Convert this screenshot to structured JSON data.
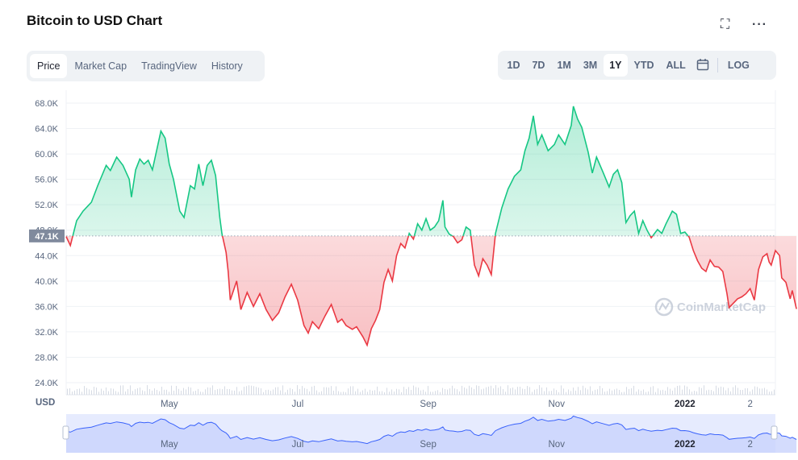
{
  "header": {
    "title": "Bitcoin to USD Chart",
    "fullscreen_icon": "expand-icon",
    "more_icon": "more-horizontal-icon"
  },
  "tabs": [
    {
      "label": "Price",
      "active": true
    },
    {
      "label": "Market Cap",
      "active": false
    },
    {
      "label": "TradingView",
      "active": false
    },
    {
      "label": "History",
      "active": false
    }
  ],
  "ranges": [
    {
      "label": "1D",
      "active": false
    },
    {
      "label": "7D",
      "active": false
    },
    {
      "label": "1M",
      "active": false
    },
    {
      "label": "3M",
      "active": false
    },
    {
      "label": "1Y",
      "active": true
    },
    {
      "label": "YTD",
      "active": false
    },
    {
      "label": "ALL",
      "active": false
    }
  ],
  "calendar_icon": "calendar-icon",
  "log_label": "LOG",
  "colors": {
    "up": "#16c784",
    "down": "#ea3943",
    "navigator": "#3861fb",
    "text": "#58667e"
  },
  "chart_data": {
    "type": "area",
    "title": "Bitcoin to USD Chart",
    "currency_label": "USD",
    "baseline": 47100,
    "baseline_label": "47.1K",
    "ylim": [
      24000,
      68000
    ],
    "yticks": [
      24000,
      28000,
      32000,
      36000,
      40000,
      44000,
      48000,
      52000,
      56000,
      60000,
      64000,
      68000
    ],
    "ytick_labels": [
      "24.0K",
      "28.0K",
      "32.0K",
      "36.0K",
      "40.0K",
      "44.0K",
      "48.0K",
      "52.0K",
      "56.0K",
      "60.0K",
      "64.0K",
      "68.0K"
    ],
    "x_range": [
      "2021-03-13",
      "2022-02-13"
    ],
    "xticks": [
      {
        "date": "2021-05-01",
        "label": "May",
        "bold": false
      },
      {
        "date": "2021-07-01",
        "label": "Jul",
        "bold": false
      },
      {
        "date": "2021-09-01",
        "label": "Sep",
        "bold": false
      },
      {
        "date": "2021-11-01",
        "label": "Nov",
        "bold": false
      },
      {
        "date": "2022-01-01",
        "label": "2022",
        "bold": true
      },
      {
        "date": "2022-02-01",
        "label": "2",
        "bold": false
      }
    ],
    "watermark": "CoinMarketCap",
    "grid": true,
    "series": [
      {
        "values": [
          [
            "2021-03-13",
            47000
          ],
          [
            "2021-03-15",
            45600
          ],
          [
            "2021-03-18",
            49500
          ],
          [
            "2021-03-21",
            51000
          ],
          [
            "2021-03-25",
            52400
          ],
          [
            "2021-03-28",
            55000
          ],
          [
            "2021-04-01",
            58200
          ],
          [
            "2021-04-03",
            57400
          ],
          [
            "2021-04-06",
            59500
          ],
          [
            "2021-04-09",
            58200
          ],
          [
            "2021-04-12",
            56000
          ],
          [
            "2021-04-13",
            53200
          ],
          [
            "2021-04-15",
            57500
          ],
          [
            "2021-04-17",
            59200
          ],
          [
            "2021-04-19",
            58400
          ],
          [
            "2021-04-21",
            59000
          ],
          [
            "2021-04-23",
            57500
          ],
          [
            "2021-04-25",
            60600
          ],
          [
            "2021-04-27",
            63600
          ],
          [
            "2021-04-29",
            62500
          ],
          [
            "2021-05-01",
            58400
          ],
          [
            "2021-05-03",
            56000
          ],
          [
            "2021-05-06",
            51000
          ],
          [
            "2021-05-08",
            50000
          ],
          [
            "2021-05-11",
            55000
          ],
          [
            "2021-05-13",
            54500
          ],
          [
            "2021-05-15",
            58400
          ],
          [
            "2021-05-17",
            55000
          ],
          [
            "2021-05-19",
            58200
          ],
          [
            "2021-05-21",
            59000
          ],
          [
            "2021-05-23",
            56600
          ],
          [
            "2021-05-25",
            50000
          ],
          [
            "2021-05-26",
            47500
          ],
          [
            "2021-05-28",
            44500
          ],
          [
            "2021-05-29",
            41500
          ],
          [
            "2021-05-30",
            37000
          ],
          [
            "2021-06-02",
            40000
          ],
          [
            "2021-06-04",
            35500
          ],
          [
            "2021-06-07",
            38200
          ],
          [
            "2021-06-10",
            36000
          ],
          [
            "2021-06-13",
            38000
          ],
          [
            "2021-06-16",
            35500
          ],
          [
            "2021-06-19",
            33800
          ],
          [
            "2021-06-22",
            35000
          ],
          [
            "2021-06-25",
            37500
          ],
          [
            "2021-06-28",
            39500
          ],
          [
            "2021-07-01",
            37000
          ],
          [
            "2021-07-04",
            33000
          ],
          [
            "2021-07-06",
            31800
          ],
          [
            "2021-07-08",
            33600
          ],
          [
            "2021-07-11",
            32500
          ],
          [
            "2021-07-14",
            34500
          ],
          [
            "2021-07-17",
            36300
          ],
          [
            "2021-07-20",
            33500
          ],
          [
            "2021-07-22",
            34000
          ],
          [
            "2021-07-24",
            33000
          ],
          [
            "2021-07-27",
            32400
          ],
          [
            "2021-07-29",
            32800
          ],
          [
            "2021-08-01",
            31200
          ],
          [
            "2021-08-03",
            29900
          ],
          [
            "2021-08-05",
            32500
          ],
          [
            "2021-08-07",
            33800
          ],
          [
            "2021-08-09",
            35500
          ],
          [
            "2021-08-11",
            39800
          ],
          [
            "2021-08-13",
            41800
          ],
          [
            "2021-08-15",
            40000
          ],
          [
            "2021-08-17",
            44000
          ],
          [
            "2021-08-19",
            45900
          ],
          [
            "2021-08-21",
            45200
          ],
          [
            "2021-08-23",
            47500
          ],
          [
            "2021-08-25",
            46600
          ],
          [
            "2021-08-27",
            49000
          ],
          [
            "2021-08-29",
            48000
          ],
          [
            "2021-08-31",
            49800
          ],
          [
            "2021-09-02",
            48000
          ],
          [
            "2021-09-04",
            48500
          ],
          [
            "2021-09-06",
            49500
          ],
          [
            "2021-09-08",
            52700
          ],
          [
            "2021-09-09",
            48500
          ],
          [
            "2021-09-11",
            47400
          ],
          [
            "2021-09-13",
            47000
          ],
          [
            "2021-09-15",
            46000
          ],
          [
            "2021-09-17",
            46500
          ],
          [
            "2021-09-19",
            48500
          ],
          [
            "2021-09-21",
            48000
          ],
          [
            "2021-09-23",
            42500
          ],
          [
            "2021-09-25",
            40800
          ],
          [
            "2021-09-27",
            43500
          ],
          [
            "2021-09-29",
            42500
          ],
          [
            "2021-10-01",
            41000
          ],
          [
            "2021-10-03",
            47500
          ],
          [
            "2021-10-06",
            51500
          ],
          [
            "2021-10-09",
            54500
          ],
          [
            "2021-10-12",
            56500
          ],
          [
            "2021-10-15",
            57500
          ],
          [
            "2021-10-17",
            60500
          ],
          [
            "2021-10-19",
            62500
          ],
          [
            "2021-10-21",
            66000
          ],
          [
            "2021-10-23",
            61500
          ],
          [
            "2021-10-25",
            63000
          ],
          [
            "2021-10-28",
            60500
          ],
          [
            "2021-10-31",
            61500
          ],
          [
            "2021-11-02",
            63000
          ],
          [
            "2021-11-05",
            61500
          ],
          [
            "2021-11-08",
            64500
          ],
          [
            "2021-11-09",
            67500
          ],
          [
            "2021-11-11",
            65500
          ],
          [
            "2021-11-13",
            64200
          ],
          [
            "2021-11-16",
            60300
          ],
          [
            "2021-11-18",
            57000
          ],
          [
            "2021-11-20",
            59500
          ],
          [
            "2021-11-23",
            57200
          ],
          [
            "2021-11-26",
            54800
          ],
          [
            "2021-11-28",
            56800
          ],
          [
            "2021-11-30",
            57500
          ],
          [
            "2021-12-02",
            55500
          ],
          [
            "2021-12-04",
            49200
          ],
          [
            "2021-12-06",
            50300
          ],
          [
            "2021-12-08",
            51000
          ],
          [
            "2021-12-10",
            47500
          ],
          [
            "2021-12-12",
            49500
          ],
          [
            "2021-12-14",
            48000
          ],
          [
            "2021-12-16",
            46800
          ],
          [
            "2021-12-19",
            48100
          ],
          [
            "2021-12-21",
            47500
          ],
          [
            "2021-12-23",
            49000
          ],
          [
            "2021-12-26",
            51000
          ],
          [
            "2021-12-28",
            50500
          ],
          [
            "2021-12-30",
            47500
          ],
          [
            "2022-01-01",
            47700
          ],
          [
            "2022-01-03",
            46900
          ],
          [
            "2022-01-05",
            44800
          ],
          [
            "2022-01-07",
            43200
          ],
          [
            "2022-01-09",
            42000
          ],
          [
            "2022-01-11",
            41500
          ],
          [
            "2022-01-13",
            43300
          ],
          [
            "2022-01-15",
            42300
          ],
          [
            "2022-01-17",
            42200
          ],
          [
            "2022-01-19",
            41500
          ],
          [
            "2022-01-21",
            38000
          ],
          [
            "2022-01-22",
            35800
          ],
          [
            "2022-01-24",
            36500
          ],
          [
            "2022-01-26",
            37200
          ],
          [
            "2022-01-28",
            37500
          ],
          [
            "2022-01-30",
            38000
          ],
          [
            "2022-02-01",
            38800
          ],
          [
            "2022-02-03",
            37000
          ],
          [
            "2022-02-05",
            41800
          ],
          [
            "2022-02-07",
            43800
          ],
          [
            "2022-02-09",
            44300
          ],
          [
            "2022-02-10",
            43000
          ],
          [
            "2022-02-11",
            42500
          ],
          [
            "2022-02-13",
            44800
          ],
          [
            "2022-02-15",
            44000
          ],
          [
            "2022-02-16",
            40500
          ],
          [
            "2022-02-18",
            39800
          ],
          [
            "2022-02-20",
            37200
          ],
          [
            "2022-02-21",
            38500
          ],
          [
            "2022-02-23",
            35600
          ]
        ]
      }
    ]
  }
}
